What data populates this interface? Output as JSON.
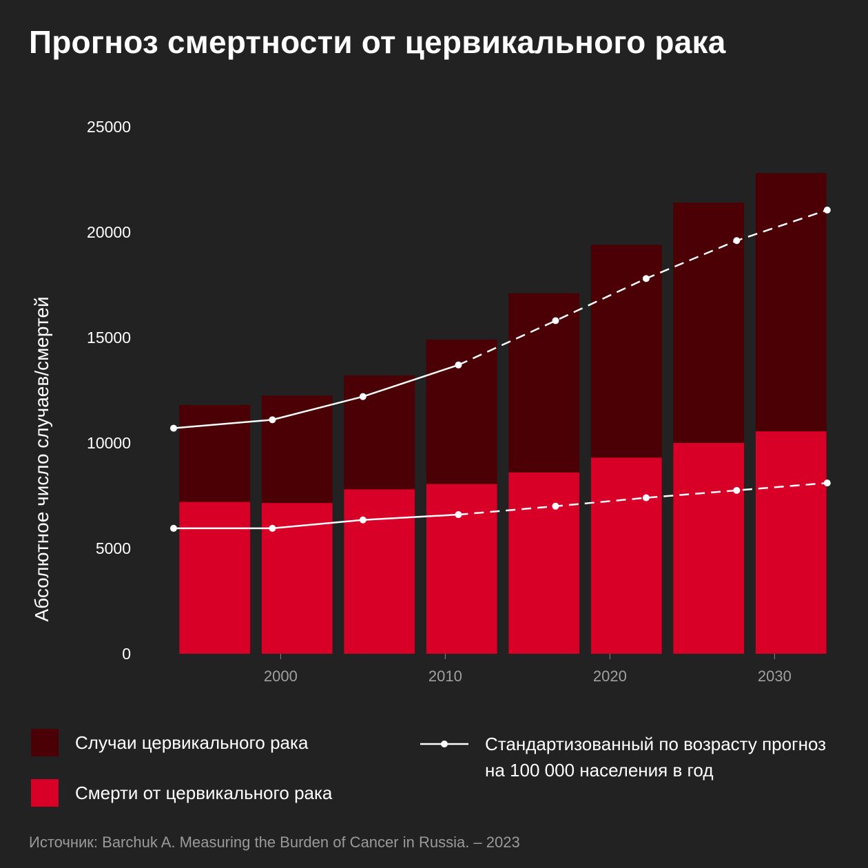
{
  "title": "Прогноз смертности от цервикального рака",
  "source": "Источник: Barchuk A. Measuring the Burden of Cancer in Russia. – 2023",
  "colors": {
    "background": "#222222",
    "cases": "#4a0004",
    "deaths": "#d90027",
    "line": "#ffffff"
  },
  "legend": {
    "cases": "Случаи цервикального рака",
    "deaths": "Смерти от цервикального рака",
    "line": "Стандартизованный по возрасту прогноз на 100 000 населения в год"
  },
  "chart_data": {
    "type": "bar",
    "stacked": false,
    "ylabel": "Абсолютное число случаев/смертей",
    "ylim": [
      0,
      25000
    ],
    "y_ticks": [
      0,
      5000,
      10000,
      15000,
      20000,
      25000
    ],
    "y_tick_labels": [
      "0",
      "5000",
      "10000",
      "15000",
      "20000",
      "25000"
    ],
    "x_ticks": [
      2000,
      2010,
      2020,
      2030
    ],
    "x_tick_labels": [
      "2000",
      "2010",
      "2020",
      "2030"
    ],
    "xlim": [
      1993.5,
      2033.5
    ],
    "bar_width_years": 4.3,
    "bar_centers": [
      1996,
      2001,
      2006,
      2011,
      2016,
      2021,
      2026,
      2031
    ],
    "series": [
      {
        "name": "Случаи цервикального рака",
        "values": [
          11800,
          12250,
          13200,
          14900,
          17100,
          19400,
          21400,
          22800
        ]
      },
      {
        "name": "Смерти от цервикального рака",
        "values": [
          7200,
          7150,
          7800,
          8050,
          8600,
          9300,
          10000,
          10550
        ]
      }
    ],
    "lines": [
      {
        "name": "Стандартизованный по возрасту прогноз на 100 000 населения в год (случаи)",
        "x": [
          1993.5,
          1999.5,
          2005,
          2010.8,
          2016.7,
          2022.2,
          2027.7,
          2033.2
        ],
        "y": [
          10700,
          11100,
          12200,
          13700,
          15800,
          17800,
          19600,
          21050
        ],
        "solid_until_index": 3
      },
      {
        "name": "Стандартизованный по возрасту прогноз на 100 000 населения в год (смерти)",
        "x": [
          1993.5,
          1999.5,
          2005,
          2010.8,
          2016.7,
          2022.2,
          2027.7,
          2033.2
        ],
        "y": [
          5950,
          5950,
          6350,
          6600,
          7000,
          7400,
          7750,
          8100
        ],
        "solid_until_index": 3
      }
    ],
    "grid": false
  }
}
